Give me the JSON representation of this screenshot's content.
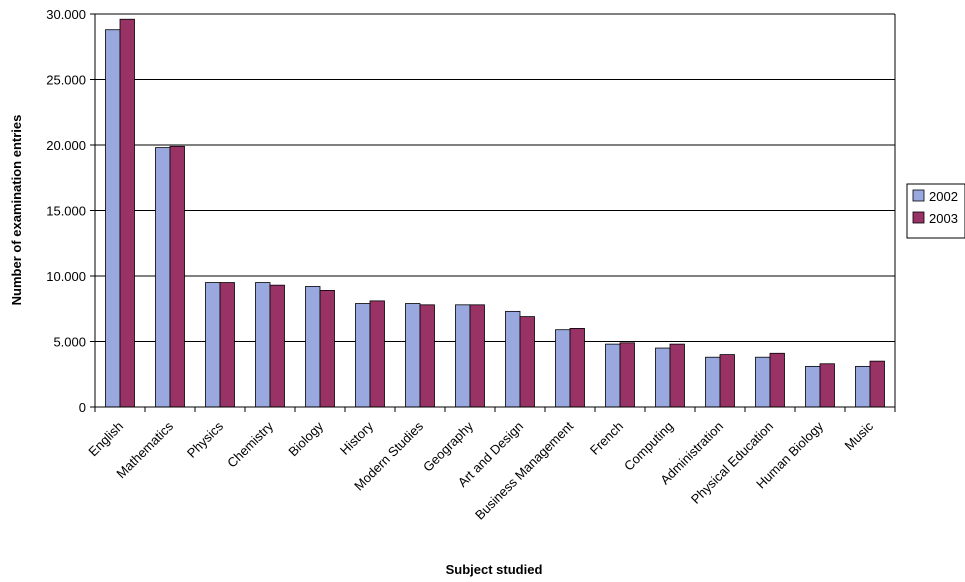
{
  "chart_data": {
    "type": "bar",
    "title": "",
    "xlabel": "Subject studied",
    "ylabel": "Number of examination entries",
    "ylim": [
      0,
      30000
    ],
    "yticks": [
      0,
      5000,
      10000,
      15000,
      20000,
      25000,
      30000
    ],
    "ytick_labels": [
      "0",
      "5.000",
      "10.000",
      "15.000",
      "20.000",
      "25.000",
      "30.000"
    ],
    "grid": true,
    "legend_position": "right",
    "categories": [
      "English",
      "Mathematics",
      "Physics",
      "Chemistry",
      "Biology",
      "History",
      "Modern Studies",
      "Geography",
      "Art and Design",
      "Business Management",
      "French",
      "Computing",
      "Administration",
      "Physical Education",
      "Human Biology",
      "Music"
    ],
    "series": [
      {
        "name": "2002",
        "color": "#99a9e0",
        "values": [
          28800,
          19800,
          9500,
          9500,
          9200,
          7900,
          7900,
          7800,
          7300,
          5900,
          4800,
          4500,
          3800,
          3800,
          3100,
          3100
        ]
      },
      {
        "name": "2003",
        "color": "#993366",
        "values": [
          29600,
          19900,
          9500,
          9300,
          8900,
          8100,
          7800,
          7800,
          6900,
          6000,
          4900,
          4800,
          4000,
          4100,
          3300,
          3500
        ]
      }
    ]
  }
}
